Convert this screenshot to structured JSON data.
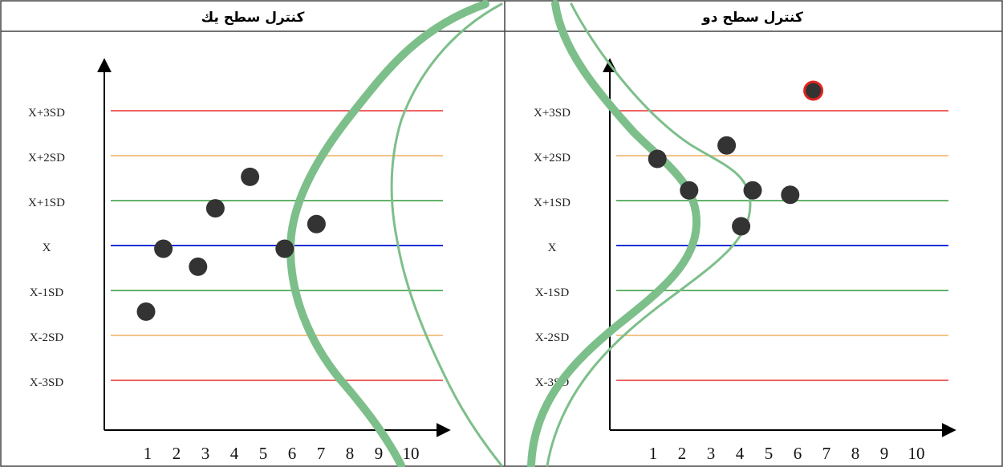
{
  "colors": {
    "plus_minus_3sd": "#e8302c",
    "plus_minus_2sd": "#f0b060",
    "plus_minus_1sd": "#2e9a3a",
    "mean": "#1a2fd6",
    "curve": "#7dbf8a",
    "point": "#333333",
    "outlier_ring": "#e0241f"
  },
  "chart_data": [
    {
      "type": "scatter",
      "title": "كنترل سطح يك",
      "y_levels": [
        "X+3SD",
        "X+2SD",
        "X+1SD",
        "X",
        "X-1SD",
        "X-2SD",
        "X-3SD"
      ],
      "y_values": [
        3,
        2,
        1,
        0,
        -1,
        -2,
        -3
      ],
      "x_ticks": [
        "1",
        "2",
        "3",
        "4",
        "5",
        "6",
        "7",
        "8",
        "9",
        "10"
      ],
      "ylim": [
        -3.3,
        4.3
      ],
      "xlim": [
        0.2,
        10.4
      ],
      "points": [
        {
          "x": 1,
          "y": -1.4
        },
        {
          "x": 1.6,
          "y": 0
        },
        {
          "x": 2.8,
          "y": -0.4
        },
        {
          "x": 3.4,
          "y": 0.9
        },
        {
          "x": 4.6,
          "y": 1.6
        },
        {
          "x": 5.8,
          "y": 0
        },
        {
          "x": 6.9,
          "y": 0.55
        }
      ],
      "outliers": []
    },
    {
      "type": "scatter",
      "title": "كنترل سطح دو",
      "y_levels": [
        "X+3SD",
        "X+2SD",
        "X+1SD",
        "X",
        "X-1SD",
        "X-2SD",
        "X-3SD"
      ],
      "y_values": [
        3,
        2,
        1,
        0,
        -1,
        -2,
        -3
      ],
      "x_ticks": [
        "1",
        "2",
        "3",
        "4",
        "5",
        "6",
        "7",
        "8",
        "9",
        "10"
      ],
      "ylim": [
        -3.3,
        4.3
      ],
      "xlim": [
        0.2,
        10.4
      ],
      "points": [
        {
          "x": 1.2,
          "y": 2.0
        },
        {
          "x": 2.3,
          "y": 1.3
        },
        {
          "x": 3.6,
          "y": 2.3
        },
        {
          "x": 4.1,
          "y": 0.5
        },
        {
          "x": 4.5,
          "y": 1.3
        },
        {
          "x": 5.8,
          "y": 1.2
        }
      ],
      "outliers": [
        {
          "x": 6.6,
          "y": 3.5
        }
      ]
    }
  ]
}
